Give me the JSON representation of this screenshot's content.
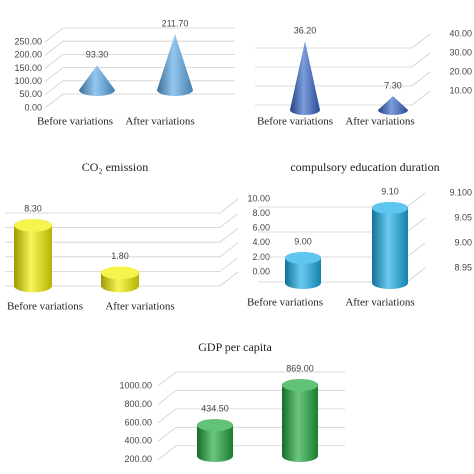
{
  "chart_data": [
    {
      "type": "cone",
      "categories": [
        "Before variations",
        "After variations"
      ],
      "values": [
        93.3,
        211.7
      ],
      "value_labels": [
        "93.30",
        "211.70"
      ],
      "color": "#5aa9e6",
      "ylim": [
        0,
        250
      ],
      "yticks": [
        {
          "value": 0,
          "label": "0.00"
        },
        {
          "value": 50,
          "label": "50.00"
        },
        {
          "value": 100,
          "label": "100.00"
        },
        {
          "value": 150,
          "label": "150.00"
        },
        {
          "value": 200,
          "label": "200.00"
        },
        {
          "value": 250,
          "label": "250.00"
        }
      ],
      "axis_side": "left",
      "grid": true
    },
    {
      "type": "cone",
      "categories": [
        "Before variations",
        "After variations"
      ],
      "values": [
        36.2,
        7.3
      ],
      "value_labels": [
        "36.20",
        "7.30"
      ],
      "color": "#3566c8",
      "ylim": [
        0,
        40
      ],
      "yticks": [
        {
          "value": 10,
          "label": "10.00"
        },
        {
          "value": 20,
          "label": "20.00"
        },
        {
          "value": 30,
          "label": "30.00"
        },
        {
          "value": 40,
          "label": "40.00"
        }
      ],
      "axis_side": "right",
      "grid": true
    },
    {
      "type": "cylinder",
      "title": "CO₂ emission",
      "categories": [
        "Before variations",
        "After variations"
      ],
      "values": [
        8.3,
        1.8
      ],
      "value_labels": [
        "8.30",
        "1.80"
      ],
      "color": "#f2ee00",
      "ylim": [
        0,
        10
      ],
      "yticks": [
        {
          "value": 0,
          "label": "0.00"
        },
        {
          "value": 2,
          "label": "2.00"
        },
        {
          "value": 4,
          "label": "4.00"
        },
        {
          "value": 6,
          "label": "6.00"
        },
        {
          "value": 8,
          "label": "8.00"
        },
        {
          "value": 10,
          "label": "10.00"
        }
      ],
      "axis_side": "right",
      "grid": true
    },
    {
      "type": "cylinder",
      "title": "compulsory education duration",
      "categories": [
        "Before variations",
        "After variations"
      ],
      "values": [
        9.0,
        9.1
      ],
      "value_labels": [
        "9.00",
        "9.10"
      ],
      "color": "#1aaee8",
      "ylim": [
        8.95,
        9.1
      ],
      "yticks": [
        {
          "value": 8.95,
          "label": "8.95"
        },
        {
          "value": 9.0,
          "label": "9.00"
        },
        {
          "value": 9.05,
          "label": "9.05"
        },
        {
          "value": 9.1,
          "label": "9.100"
        }
      ],
      "axis_side": "right",
      "grid": true
    },
    {
      "type": "cylinder",
      "title": "GDP per capita",
      "categories": [
        null,
        null
      ],
      "values": [
        434.5,
        869.0
      ],
      "value_labels": [
        "434.50",
        "869.00"
      ],
      "color": "#1fa83a",
      "ylim": [
        100,
        1000
      ],
      "yticks": [
        {
          "value": 200,
          "label": "200.00"
        },
        {
          "value": 400,
          "label": "400.00"
        },
        {
          "value": 600,
          "label": "600.00"
        },
        {
          "value": 800,
          "label": "800.00"
        },
        {
          "value": 1000,
          "label": "1000.00"
        }
      ],
      "axis_side": "left",
      "grid": true
    }
  ]
}
